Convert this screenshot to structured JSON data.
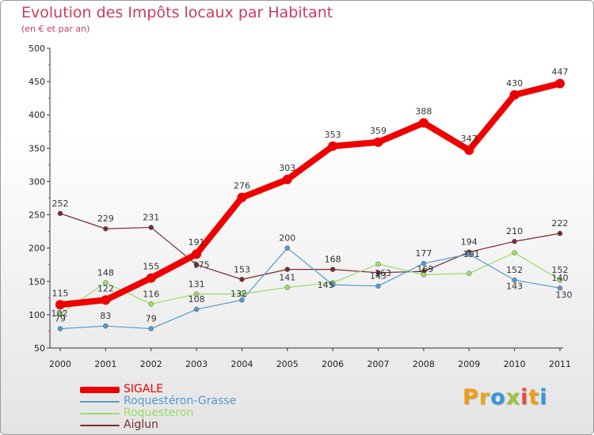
{
  "title": "Evolution des Impôts locaux par Habitant",
  "subtitle": "(en € et par an)",
  "logo": [
    "P",
    "r",
    "o",
    "x",
    "i",
    "t",
    "i"
  ],
  "chart_data": {
    "type": "line",
    "x": [
      "2000",
      "2001",
      "2002",
      "2003",
      "2004",
      "2005",
      "2006",
      "2007",
      "2008",
      "2009",
      "2010",
      "2011"
    ],
    "yticks": [
      50,
      100,
      150,
      200,
      250,
      300,
      350,
      400,
      450,
      500
    ],
    "ylim": [
      50,
      500
    ],
    "grid": false,
    "legend_position": "bottom-left",
    "series": [
      {
        "name": "Aiglun",
        "color": "#7a2a30",
        "values": [
          252,
          229,
          231,
          175,
          153,
          168,
          168,
          163,
          165,
          194,
          210,
          222
        ],
        "labels": [
          "252",
          "229",
          "231",
          "",
          "153",
          "",
          "168",
          "",
          "",
          "194",
          "210",
          "222"
        ]
      },
      {
        "name": "Roquesteron",
        "color": "#99dd66",
        "values": [
          101,
          148,
          116,
          131,
          131,
          141,
          148,
          176,
          160,
          162,
          193,
          152
        ],
        "labels": [
          "",
          "148",
          "116",
          "131",
          "",
          "141",
          "",
          "",
          "",
          "",
          "",
          "152"
        ]
      },
      {
        "name": "Roquestéron-Grasse",
        "color": "#5599cc",
        "values": [
          79,
          83,
          79,
          108,
          122,
          200,
          145,
          143,
          177,
          191,
          152,
          140
        ],
        "labels": [
          "79",
          "83",
          "79",
          "108",
          "",
          "200",
          "",
          "143",
          "177",
          "",
          "152",
          "140"
        ]
      },
      {
        "name": "SIGALE",
        "color": "#ee0000",
        "values": [
          115,
          122,
          155,
          191,
          276,
          303,
          353,
          359,
          388,
          347,
          430,
          447
        ],
        "labels": [
          "115",
          "122",
          "155",
          "191",
          "276",
          "303",
          "353",
          "359",
          "388",
          "347",
          "430",
          "447"
        ]
      }
    ],
    "overlap_labels": [
      "102",
      "175",
      "132",
      "145",
      "163",
      "169",
      "191",
      "143",
      "130"
    ]
  }
}
